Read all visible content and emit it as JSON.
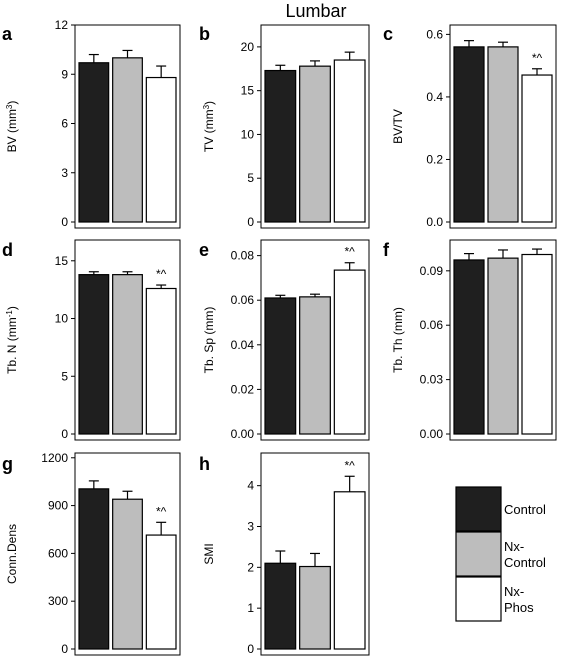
{
  "figure_title": "Lumbar",
  "legend": [
    {
      "label_lines": [
        "Control"
      ],
      "color": "#1f1f1f"
    },
    {
      "label_lines": [
        "Nx-",
        "Control"
      ],
      "color": "#bdbdbd"
    },
    {
      "label_lines": [
        "Nx-",
        "Phos"
      ],
      "color": "#ffffff"
    }
  ],
  "chart_data": [
    {
      "letter": "a",
      "type": "bar",
      "ylabel": {
        "base": "BV (mm",
        "sup": "3",
        "tail": ")"
      },
      "categories": [
        "Control",
        "Nx-Control",
        "Nx-Phos"
      ],
      "values": [
        9.7,
        10.0,
        8.8
      ],
      "errors": [
        0.5,
        0.45,
        0.7
      ],
      "ylim": [
        0,
        12
      ],
      "yticks": [
        "0",
        "3",
        "6",
        "9",
        "12"
      ],
      "annotation": ""
    },
    {
      "letter": "b",
      "type": "bar",
      "ylabel": {
        "base": "TV (mm",
        "sup": "3",
        "tail": ")"
      },
      "categories": [
        "Control",
        "Nx-Control",
        "Nx-Phos"
      ],
      "values": [
        17.3,
        17.8,
        18.5
      ],
      "errors": [
        0.6,
        0.6,
        0.9
      ],
      "ylim": [
        0,
        22.5
      ],
      "yticks": [
        "0",
        "5",
        "10",
        "15",
        "20"
      ],
      "annotation": ""
    },
    {
      "letter": "c",
      "type": "bar",
      "ylabel": {
        "base": "BV/TV",
        "sup": "",
        "tail": ""
      },
      "categories": [
        "Control",
        "Nx-Control",
        "Nx-Phos"
      ],
      "values": [
        0.56,
        0.56,
        0.47
      ],
      "errors": [
        0.02,
        0.015,
        0.02
      ],
      "ylim": [
        0,
        0.63
      ],
      "yticks": [
        "0.0",
        "0.2",
        "0.4",
        "0.6"
      ],
      "annotation": "*^"
    },
    {
      "letter": "d",
      "type": "bar",
      "ylabel": {
        "base": "Tb. N (mm",
        "sup": "-1",
        "tail": ")"
      },
      "categories": [
        "Control",
        "Nx-Control",
        "Nx-Phos"
      ],
      "values": [
        13.8,
        13.8,
        12.6
      ],
      "errors": [
        0.25,
        0.25,
        0.3
      ],
      "ylim": [
        0,
        16.8
      ],
      "yticks": [
        "0",
        "5",
        "10",
        "15"
      ],
      "annotation": "*^"
    },
    {
      "letter": "e",
      "type": "bar",
      "ylabel": {
        "base": "Tb. Sp (mm)",
        "sup": "",
        "tail": ""
      },
      "categories": [
        "Control",
        "Nx-Control",
        "Nx-Phos"
      ],
      "values": [
        0.061,
        0.0615,
        0.0735
      ],
      "errors": [
        0.0012,
        0.0012,
        0.0033
      ],
      "ylim": [
        0,
        0.087
      ],
      "yticks": [
        "0.00",
        "0.02",
        "0.04",
        "0.06",
        "0.08"
      ],
      "annotation": "*^"
    },
    {
      "letter": "f",
      "type": "bar",
      "ylabel": {
        "base": "Tb. Th (mm)",
        "sup": "",
        "tail": ""
      },
      "categories": [
        "Control",
        "Nx-Control",
        "Nx-Phos"
      ],
      "values": [
        0.096,
        0.097,
        0.099
      ],
      "errors": [
        0.0035,
        0.0045,
        0.003
      ],
      "ylim": [
        0,
        0.107
      ],
      "yticks": [
        "0.00",
        "0.03",
        "0.06",
        "0.09"
      ],
      "annotation": ""
    },
    {
      "letter": "g",
      "type": "bar",
      "ylabel": {
        "base": "Conn.Dens",
        "sup": "",
        "tail": ""
      },
      "categories": [
        "Control",
        "Nx-Control",
        "Nx-Phos"
      ],
      "values": [
        1005,
        940,
        715
      ],
      "errors": [
        50,
        50,
        80
      ],
      "ylim": [
        0,
        1230
      ],
      "yticks": [
        "0",
        "300",
        "600",
        "900",
        "1200"
      ],
      "annotation": "*^"
    },
    {
      "letter": "h",
      "type": "bar",
      "ylabel": {
        "base": "SMI",
        "sup": "",
        "tail": ""
      },
      "categories": [
        "Control",
        "Nx-Control",
        "Nx-Phos"
      ],
      "values": [
        2.1,
        2.02,
        3.85
      ],
      "errors": [
        0.3,
        0.32,
        0.38
      ],
      "ylim": [
        0,
        4.8
      ],
      "yticks": [
        "0",
        "1",
        "2",
        "3",
        "4"
      ],
      "annotation": "*^"
    }
  ]
}
